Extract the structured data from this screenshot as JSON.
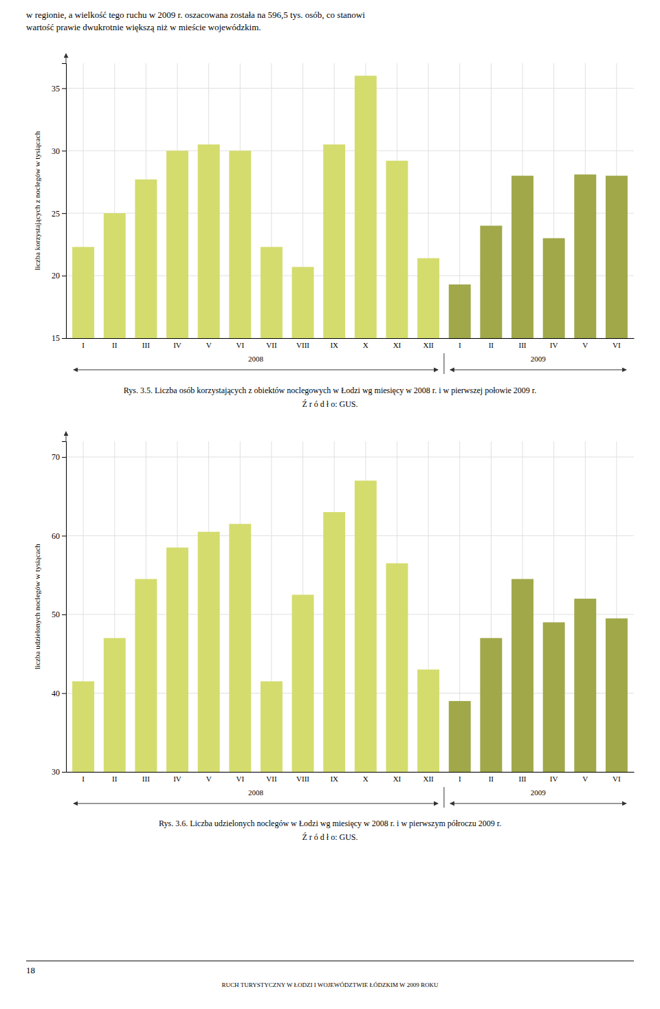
{
  "header": [
    "w regionie, a wielkość tego ruchu w 2009 r. oszacowana została na 596,5 tys. osób, co stanowi",
    "wartość prawie dwukrotnie większą niż w mieście wojewódzkim."
  ],
  "page_number": "18",
  "footer": "RUCH TURYSTYCZNY W ŁODZI I WOJEWÓDZTWIE ŁÓDZKIM W 2009 ROKU",
  "chart_data": [
    {
      "type": "bar",
      "title": "Rys. 3.5.  Liczba osób korzystających z obiektów noclegowych w Łodzi wg miesięcy w 2008 r.  i w pierwszej połowie 2009 r.",
      "subtitle": "Ź r ó d ł o: GUS.",
      "ylabel": "liczba korzystających z noclegów w tysiącach",
      "categories": [
        "I",
        "II",
        "III",
        "IV",
        "V",
        "VI",
        "VII",
        "VIII",
        "IX",
        "X",
        "XI",
        "XII",
        "I",
        "II",
        "III",
        "IV",
        "V",
        "VI"
      ],
      "series": [
        {
          "name": "2008",
          "color": "#d4dc6e",
          "values": [
            22.3,
            25.0,
            27.7,
            30.0,
            30.5,
            30.0,
            22.3,
            20.7,
            30.5,
            36.0,
            29.2,
            21.4,
            null,
            null,
            null,
            null,
            null,
            null
          ]
        },
        {
          "name": "2009",
          "color": "#a0a84a",
          "values": [
            null,
            null,
            null,
            null,
            null,
            null,
            null,
            null,
            null,
            null,
            null,
            null,
            19.3,
            24.0,
            28.0,
            23.0,
            28.1,
            28.0
          ]
        }
      ],
      "ylim": [
        15,
        37
      ],
      "yticks": [
        15,
        20,
        25,
        30,
        35
      ],
      "grid": true
    },
    {
      "type": "bar",
      "title": "Rys. 3.6.  Liczba udzielonych noclegów w Łodzi wg miesięcy w 2008 r. i w pierwszym półroczu 2009 r.",
      "subtitle": "Ź r ó d ł o: GUS.",
      "ylabel": "liczba udzielonych noclegów  w tysiącach",
      "categories": [
        "I",
        "II",
        "III",
        "IV",
        "V",
        "VI",
        "VII",
        "VIII",
        "IX",
        "X",
        "XI",
        "XII",
        "I",
        "II",
        "III",
        "IV",
        "V",
        "VI"
      ],
      "series": [
        {
          "name": "2008",
          "color": "#d4dc6e",
          "values": [
            41.5,
            47.0,
            54.5,
            58.5,
            60.5,
            61.5,
            41.5,
            52.5,
            63.0,
            67.0,
            56.5,
            43.0,
            null,
            null,
            null,
            null,
            null,
            null
          ]
        },
        {
          "name": "2009",
          "color": "#a0a84a",
          "values": [
            null,
            null,
            null,
            null,
            null,
            null,
            null,
            null,
            null,
            null,
            null,
            null,
            39.0,
            47.0,
            54.5,
            49.0,
            52.0,
            49.5
          ]
        }
      ],
      "ylim": [
        30,
        72
      ],
      "yticks": [
        30,
        40,
        50,
        60,
        70
      ],
      "grid": true
    }
  ]
}
